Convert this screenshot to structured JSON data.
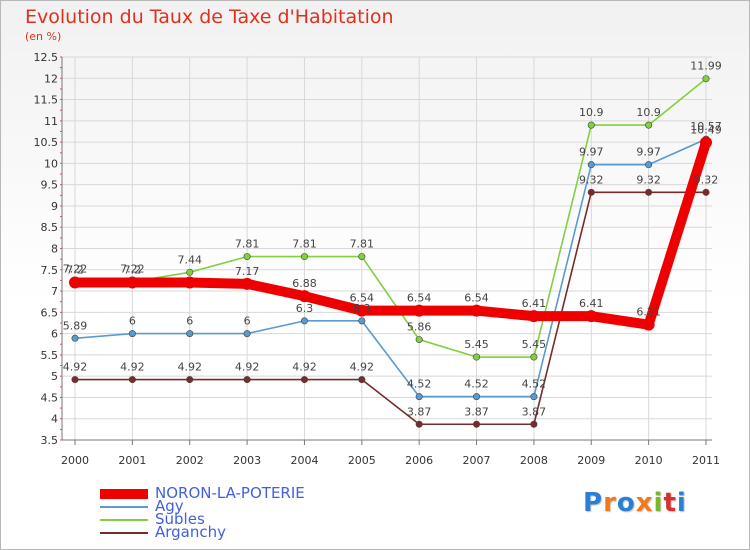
{
  "header": {
    "title": "Evolution du Taux de Taxe d'Habitation",
    "subtitle": "(en %)"
  },
  "logo": {
    "text": "Proxiti",
    "colors": [
      "#2a7fd4",
      "#f07a1a",
      "#2a7fd4",
      "#f07a1a",
      "#7ab828",
      "#d83030",
      "#2a7fd4"
    ]
  },
  "chart_data": {
    "type": "line",
    "title": "Evolution du Taux de Taxe d'Habitation",
    "ylabel": "(en %)",
    "xlabel": "",
    "categories": [
      "2000",
      "2001",
      "2002",
      "2003",
      "2004",
      "2005",
      "2006",
      "2007",
      "2008",
      "2009",
      "2010",
      "2011"
    ],
    "ylim": [
      3.5,
      12.5
    ],
    "yticks": [
      "3.5",
      "4",
      "4.5",
      "5",
      "5.5",
      "6",
      "6.5",
      "7",
      "7.5",
      "8",
      "8.5",
      "9",
      "9.5",
      "10",
      "10.5",
      "11",
      "11.5",
      "12",
      "12.5"
    ],
    "grid": true,
    "legend_position": "bottom-left",
    "series": [
      {
        "name": "Arganchy",
        "color": "#7a2a2a",
        "values": [
          4.92,
          4.92,
          4.92,
          4.92,
          4.92,
          4.92,
          3.87,
          3.87,
          3.87,
          9.32,
          9.32,
          9.32
        ],
        "labels": [
          "4.92",
          "4.92",
          "4.92",
          "4.92",
          "4.92",
          "4.92",
          "3.87",
          "3.87",
          "3.87",
          "9.32",
          "9.32",
          "9.32"
        ]
      },
      {
        "name": "Subles",
        "color": "#80d040",
        "values": [
          7.22,
          7.22,
          7.44,
          7.81,
          7.81,
          7.81,
          5.86,
          5.45,
          5.45,
          10.9,
          10.9,
          11.99
        ],
        "labels": [
          "7.22",
          "7.22",
          "7.44",
          "7.81",
          "7.81",
          "7.81",
          "5.86",
          "5.45",
          "5.45",
          "10.9",
          "10.9",
          "11.99"
        ]
      },
      {
        "name": "Agy",
        "color": "#5a9ad0",
        "values": [
          5.89,
          6,
          6,
          6,
          6.3,
          6.3,
          4.52,
          4.52,
          4.52,
          9.97,
          9.97,
          10.57
        ],
        "labels": [
          "5.89",
          "6",
          "6",
          "6",
          "6.3",
          "6.3",
          "4.52",
          "4.52",
          "4.52",
          "9.97",
          "9.97",
          "10.57"
        ]
      },
      {
        "name": "NORON-LA-POTERIE",
        "color": "#ee0000",
        "values": [
          7.2,
          7.2,
          7.2,
          7.17,
          6.88,
          6.54,
          6.54,
          6.54,
          6.41,
          6.41,
          6.21,
          10.49
        ],
        "labels": [
          "7.2",
          "7.2",
          "",
          "7.17",
          "6.88",
          "6.54",
          "6.54",
          "6.54",
          "6.41",
          "6.41",
          "6.21",
          "10.49"
        ]
      }
    ]
  },
  "legend": [
    {
      "name": "NORON-LA-POTERIE",
      "color": "#ee0000"
    },
    {
      "name": "Agy",
      "color": "#5a9ad0"
    },
    {
      "name": "Subles",
      "color": "#80d040"
    },
    {
      "name": "Arganchy",
      "color": "#7a2a2a"
    }
  ]
}
